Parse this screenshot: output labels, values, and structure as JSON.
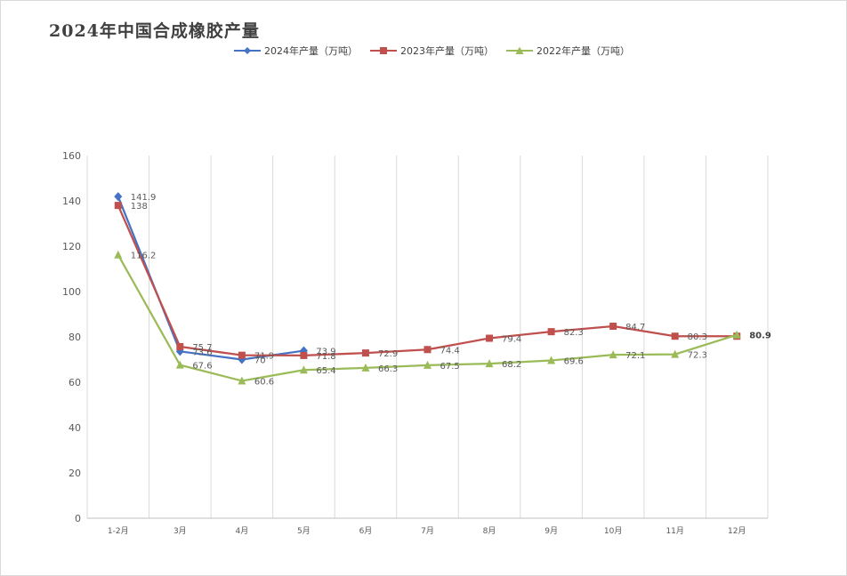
{
  "chart_data": {
    "type": "line",
    "title": "2024年中国合成橡胶产量",
    "categories": [
      "1-2月",
      "3月",
      "4月",
      "5月",
      "6月",
      "7月",
      "8月",
      "9月",
      "10月",
      "11月",
      "12月"
    ],
    "series": [
      {
        "name": "2024年产量（万吨）",
        "color": "#4472c4",
        "marker": "diamond",
        "values": [
          141.9,
          73.6,
          70.0,
          73.9,
          null,
          null,
          null,
          null,
          null,
          null,
          null
        ]
      },
      {
        "name": "2023年产量（万吨）",
        "color": "#c0504d",
        "marker": "square",
        "values": [
          138.0,
          75.7,
          71.9,
          71.8,
          72.9,
          74.4,
          79.4,
          82.3,
          84.7,
          80.3,
          80.3
        ]
      },
      {
        "name": "2022年产量（万吨）",
        "color": "#9bbb59",
        "marker": "triangle",
        "values": [
          116.2,
          67.6,
          60.6,
          65.4,
          66.3,
          67.5,
          68.2,
          69.6,
          72.1,
          72.3,
          80.9
        ]
      }
    ],
    "ylim": [
      0,
      160
    ],
    "yticks": [
      0,
      20,
      40,
      60,
      80,
      100,
      120,
      140,
      160
    ],
    "xlabel": "",
    "ylabel": "",
    "grid": "vertical",
    "legend": "top-center"
  },
  "data_labels": [
    {
      "series": 0,
      "text": [
        "141.9",
        "73.6",
        "70",
        "73.9",
        "",
        "",
        "",
        "",
        "",
        "",
        ""
      ]
    },
    {
      "series": 1,
      "text": [
        "138",
        "75.7",
        "71.9",
        "71.8",
        "72.9",
        "74.4",
        "79.4",
        "82.3",
        "84.7",
        "80.3",
        ""
      ]
    },
    {
      "series": 2,
      "text": [
        "116.2",
        "67.6",
        "60.6",
        "65.4",
        "66.3",
        "67.5",
        "68.2",
        "69.6",
        "72.1",
        "72.3",
        "80.9"
      ]
    }
  ]
}
